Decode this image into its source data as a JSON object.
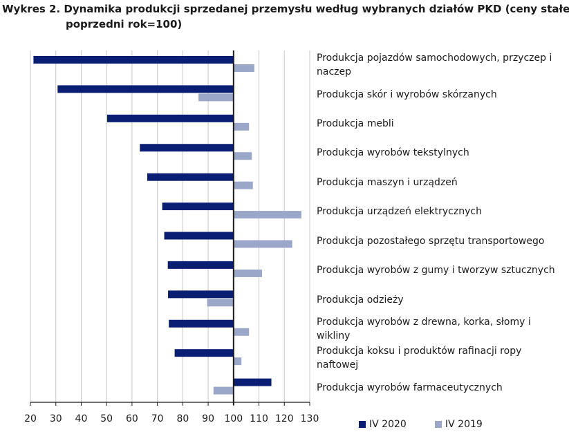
{
  "title_line1": "Wykres 2. Dynamika produkcji sprzedanej przemysłu według wybranych działów PKD (ceny stałe",
  "title_line2": "poprzedni rok=100)",
  "colors": {
    "s2020": "#0a1f73",
    "s2019": "#9ba7c9",
    "axis": "#1a1a1a",
    "grid": "#c7c7c7"
  },
  "chart_data": {
    "type": "bar",
    "orientation": "horizontal",
    "grid": true,
    "legend": "bottom",
    "baseline": 100,
    "xlim": [
      20,
      130
    ],
    "xticks": [
      20,
      30,
      40,
      50,
      60,
      70,
      80,
      90,
      100,
      110,
      120,
      130
    ],
    "categories": [
      "Produkcja pojazdów samochodowych, przyczep i naczep",
      "Produkcja skór i wyrobów skórzanych",
      "Produkcja mebli",
      "Produkcja wyrobów tekstylnych",
      "Produkcja maszyn i urządzeń",
      "Produkcja urządzeń elektrycznych",
      "Produkcja pozostałego sprzętu transportowego",
      "Produkcja wyrobów z gumy i tworzyw sztucznych",
      "Produkcja odzieży",
      "Produkcja wyrobów z drewna, korka, słomy i wikliny",
      "Produkcja koksu i produktów rafinacji ropy naftowej",
      "Produkcja wyrobów farmaceutycznych"
    ],
    "series": [
      {
        "name": "IV 2020",
        "values": [
          21.2,
          30.7,
          50.2,
          63.1,
          66,
          71.9,
          72.7,
          74.1,
          74.2,
          74.5,
          76.8,
          114.9
        ]
      },
      {
        "name": "IV 2019",
        "values": [
          108.2,
          86.2,
          106.1,
          107.2,
          107.6,
          126.7,
          123.1,
          111.2,
          89.6,
          106.1,
          103.1,
          92.1
        ]
      }
    ]
  }
}
